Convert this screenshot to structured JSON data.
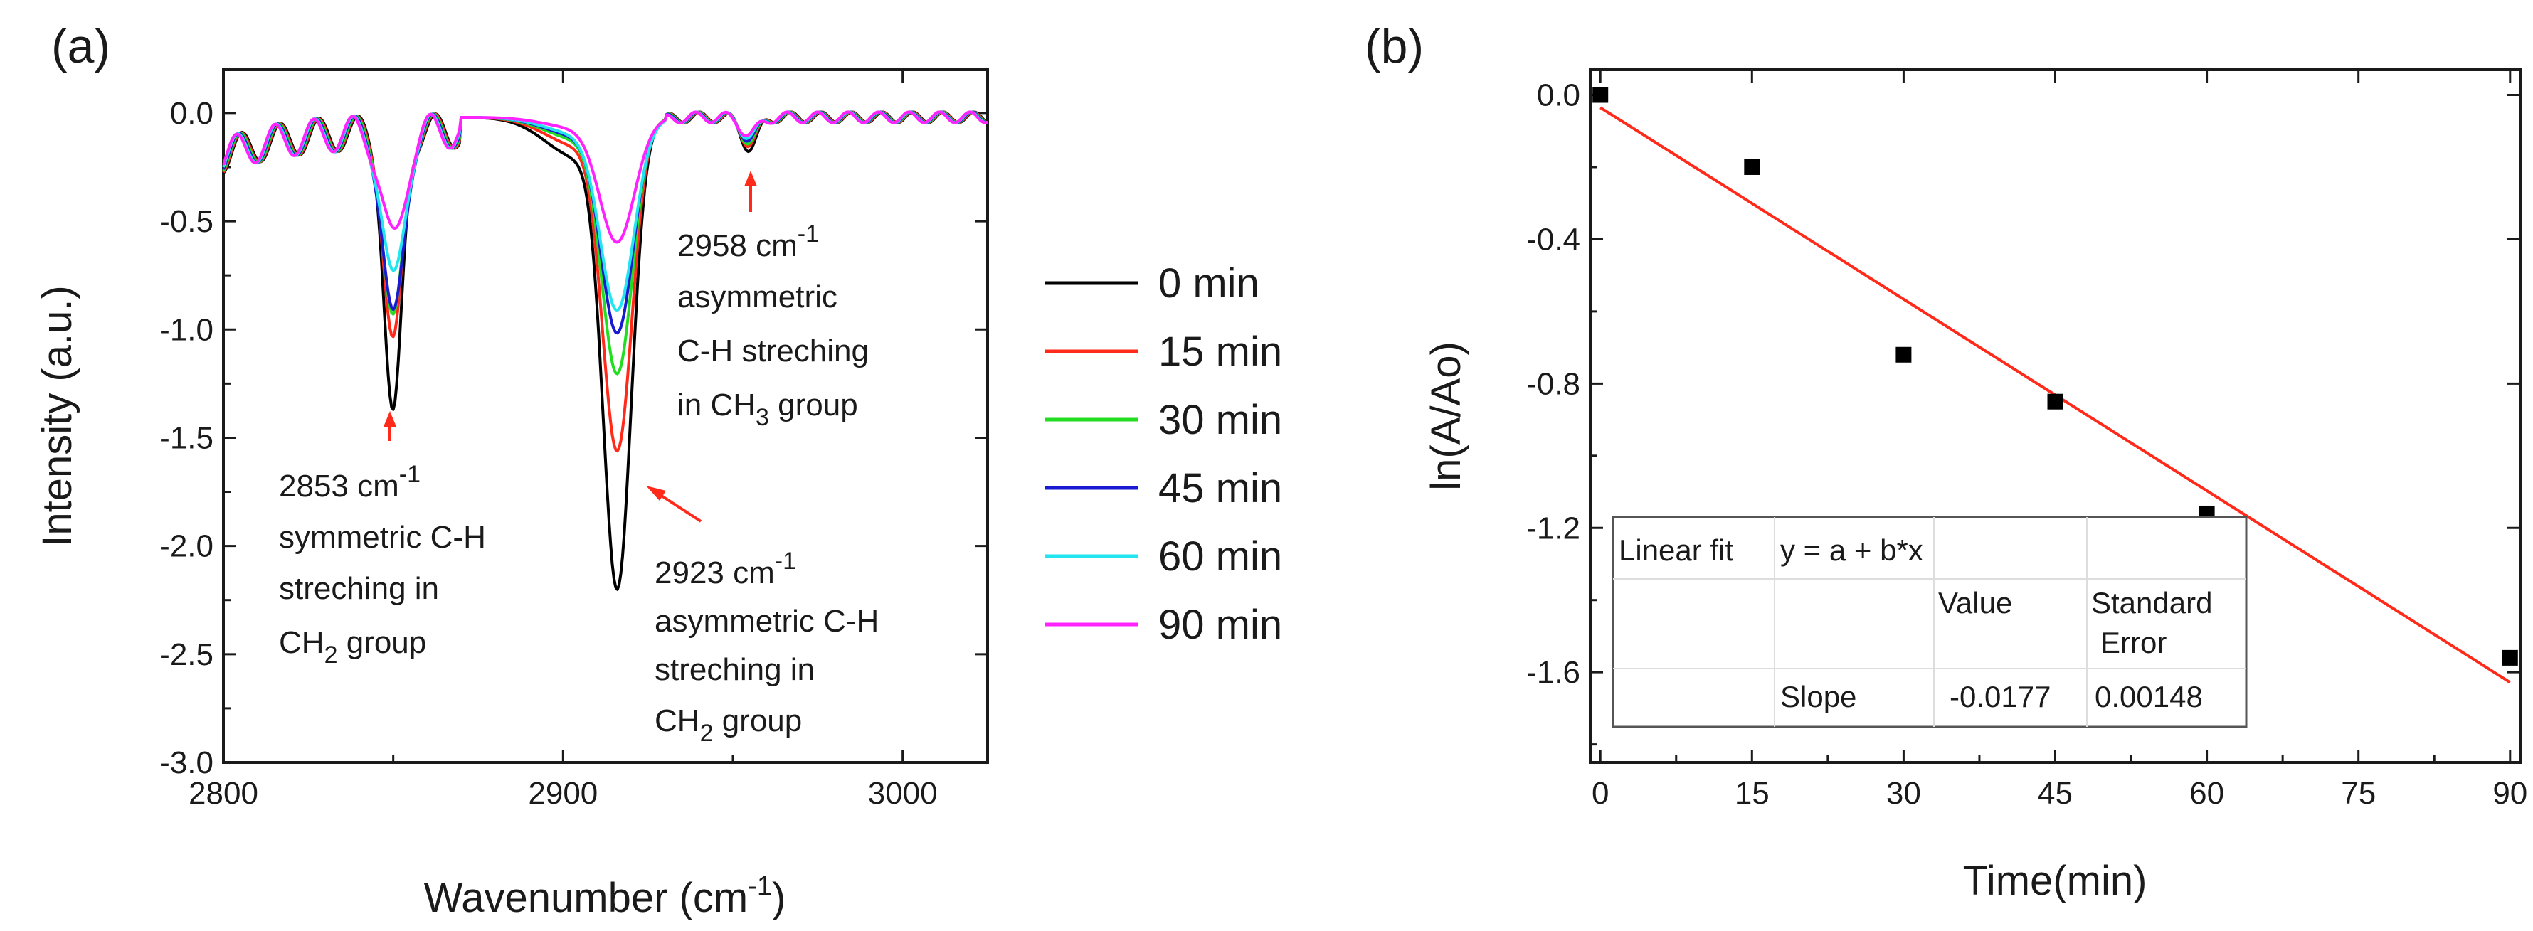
{
  "chart_data": [
    {
      "panel_label": "(a)",
      "type": "line",
      "xlabel": "Wavenumber (cm",
      "xlabel_sup": "-1",
      "xlabel_close": ")",
      "ylabel": "Intensity (a.u.)",
      "xlim": [
        2800,
        3025
      ],
      "ylim": [
        -3.0,
        0.2
      ],
      "xticks": [
        2800,
        2900,
        3000
      ],
      "xtick_labels": [
        "2800",
        "2900",
        "3000"
      ],
      "yticks": [
        0.0,
        -0.5,
        -1.0,
        -1.5,
        -2.0,
        -2.5,
        -3.0
      ],
      "ytick_labels": [
        "0.0",
        "-0.5",
        "-1.0",
        "-1.5",
        "-2.0",
        "-2.5",
        "-3.0"
      ],
      "series": [
        {
          "name": "0 min",
          "color": "#000000",
          "peaks": [
            -1.35,
            -2.08,
            -0.14
          ]
        },
        {
          "name": "15 min",
          "color": "#ff2a1a",
          "peaks": [
            -1.02,
            -1.47,
            -0.12
          ]
        },
        {
          "name": "30 min",
          "color": "#22dd22",
          "peaks": [
            -0.92,
            -1.13,
            -0.11
          ]
        },
        {
          "name": "45 min",
          "color": "#1a1ad0",
          "peaks": [
            -0.9,
            -0.95,
            -0.1
          ]
        },
        {
          "name": "60 min",
          "color": "#22e5f0",
          "peaks": [
            -0.72,
            -0.85,
            -0.09
          ]
        },
        {
          "name": "90 min",
          "color": "#ff22ff",
          "peaks": [
            -0.52,
            -0.55,
            -0.08
          ]
        }
      ],
      "peak_positions": [
        2850,
        2916,
        2955
      ],
      "annotations": [
        {
          "lines": [
            "2853 cm",
            "symmetric C-H",
            "streching in",
            "CH"
          ],
          "sup": "-1",
          "sub": "2",
          "tail": " group"
        },
        {
          "lines": [
            "2923 cm",
            "asymmetric C-H",
            "streching in",
            "CH"
          ],
          "sup": "-1",
          "sub": "2",
          "tail": " group"
        },
        {
          "lines": [
            "2958 cm",
            "asymmetric",
            "C-H streching",
            "in  CH"
          ],
          "sup": "-1",
          "sub": "3",
          "tail": " group"
        }
      ]
    },
    {
      "panel_label": "(b)",
      "type": "scatter",
      "xlabel": "Time(min)",
      "ylabel": "ln(A/Ao)",
      "xlim": [
        -1,
        91
      ],
      "ylim": [
        -1.85,
        0.07
      ],
      "xticks": [
        0,
        15,
        30,
        45,
        60,
        75,
        90
      ],
      "xtick_labels": [
        "0",
        "15",
        "30",
        "45",
        "60",
        "75",
        "90"
      ],
      "yticks": [
        0.0,
        -0.4,
        -0.8,
        -1.2,
        -1.6
      ],
      "ytick_labels": [
        "0.0",
        "-0.4",
        "-0.8",
        "-1.2",
        "-1.6"
      ],
      "points": [
        {
          "x": 0,
          "y": 0.0
        },
        {
          "x": 15,
          "y": -0.2
        },
        {
          "x": 30,
          "y": -0.72
        },
        {
          "x": 45,
          "y": -0.85
        },
        {
          "x": 60,
          "y": -1.16
        },
        {
          "x": 90,
          "y": -1.56
        }
      ],
      "fit": {
        "color": "#ff2a1a",
        "intercept": -0.035,
        "slope": -0.0177,
        "x_range": [
          0,
          90
        ]
      },
      "fit_table": {
        "row1": [
          "Linear fit",
          "y = a + b*x"
        ],
        "header": [
          "Value",
          "Standard",
          "Error"
        ],
        "row3": [
          "Slope",
          "-0.0177",
          "0.00148"
        ]
      }
    }
  ]
}
